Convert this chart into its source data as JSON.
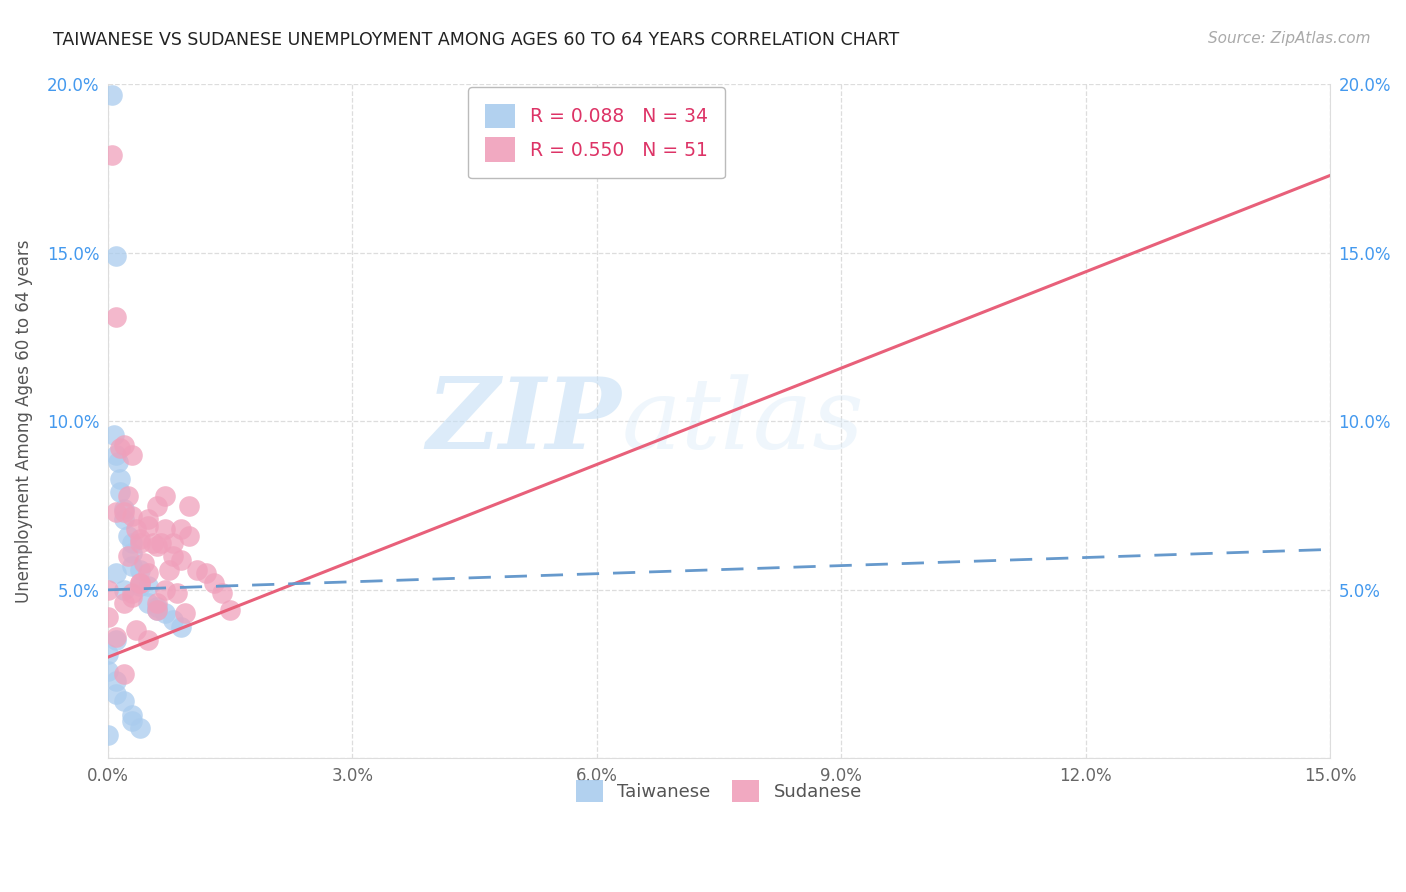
{
  "title": "TAIWANESE VS SUDANESE UNEMPLOYMENT AMONG AGES 60 TO 64 YEARS CORRELATION CHART",
  "source": "Source: ZipAtlas.com",
  "ylabel": "Unemployment Among Ages 60 to 64 years",
  "xlim": [
    0.0,
    0.15
  ],
  "ylim": [
    0.0,
    0.2
  ],
  "xticks": [
    0.0,
    0.03,
    0.06,
    0.09,
    0.12,
    0.15
  ],
  "yticks": [
    0.0,
    0.05,
    0.1,
    0.15,
    0.2
  ],
  "xtick_labels": [
    "0.0%",
    "3.0%",
    "6.0%",
    "9.0%",
    "12.0%",
    "15.0%"
  ],
  "ytick_labels": [
    "",
    "5.0%",
    "10.0%",
    "15.0%",
    "20.0%"
  ],
  "taiwanese_color": "#aaccee",
  "sudanese_color": "#f0a0bb",
  "taiwanese_line_color": "#6699cc",
  "sudanese_line_color": "#e8607a",
  "R_taiwanese": 0.088,
  "N_taiwanese": 34,
  "R_sudanese": 0.55,
  "N_sudanese": 51,
  "watermark_zip": "ZIP",
  "watermark_atlas": "atlas",
  "tw_x": [
    0.0005,
    0.001,
    0.0008,
    0.001,
    0.0012,
    0.0015,
    0.0015,
    0.002,
    0.002,
    0.0025,
    0.003,
    0.003,
    0.003,
    0.004,
    0.004,
    0.005,
    0.005,
    0.006,
    0.006,
    0.007,
    0.008,
    0.009,
    0.0,
    0.0,
    0.001,
    0.001,
    0.002,
    0.003,
    0.003,
    0.004,
    0.0,
    0.001,
    0.002,
    0.001
  ],
  "tw_y": [
    0.197,
    0.149,
    0.096,
    0.09,
    0.088,
    0.083,
    0.079,
    0.074,
    0.071,
    0.066,
    0.064,
    0.061,
    0.057,
    0.056,
    0.051,
    0.051,
    0.046,
    0.045,
    0.044,
    0.043,
    0.041,
    0.039,
    0.031,
    0.026,
    0.023,
    0.019,
    0.017,
    0.013,
    0.011,
    0.009,
    0.007,
    0.055,
    0.05,
    0.035
  ],
  "su_x": [
    0.0005,
    0.001,
    0.0015,
    0.002,
    0.0025,
    0.003,
    0.0035,
    0.004,
    0.0045,
    0.005,
    0.0055,
    0.006,
    0.0065,
    0.007,
    0.0075,
    0.008,
    0.0085,
    0.009,
    0.0095,
    0.01,
    0.011,
    0.012,
    0.013,
    0.014,
    0.015,
    0.0,
    0.001,
    0.002,
    0.003,
    0.004,
    0.005,
    0.006,
    0.007,
    0.008,
    0.009,
    0.01,
    0.0,
    0.001,
    0.002,
    0.003,
    0.004,
    0.0035,
    0.005,
    0.006,
    0.0025,
    0.007,
    0.003,
    0.004,
    0.005,
    0.006,
    0.002
  ],
  "su_y": [
    0.179,
    0.131,
    0.092,
    0.093,
    0.078,
    0.072,
    0.068,
    0.064,
    0.058,
    0.071,
    0.064,
    0.075,
    0.064,
    0.068,
    0.056,
    0.06,
    0.049,
    0.059,
    0.043,
    0.066,
    0.056,
    0.055,
    0.052,
    0.049,
    0.044,
    0.05,
    0.073,
    0.073,
    0.09,
    0.065,
    0.069,
    0.063,
    0.078,
    0.064,
    0.068,
    0.075,
    0.042,
    0.036,
    0.046,
    0.049,
    0.052,
    0.038,
    0.055,
    0.046,
    0.06,
    0.05,
    0.048,
    0.052,
    0.035,
    0.044,
    0.025
  ],
  "su_line_x0": 0.0,
  "su_line_y0": 0.03,
  "su_line_x1": 0.15,
  "su_line_y1": 0.173,
  "tw_line_x0": 0.0,
  "tw_line_y0": 0.05,
  "tw_line_x1": 0.15,
  "tw_line_y1": 0.062
}
